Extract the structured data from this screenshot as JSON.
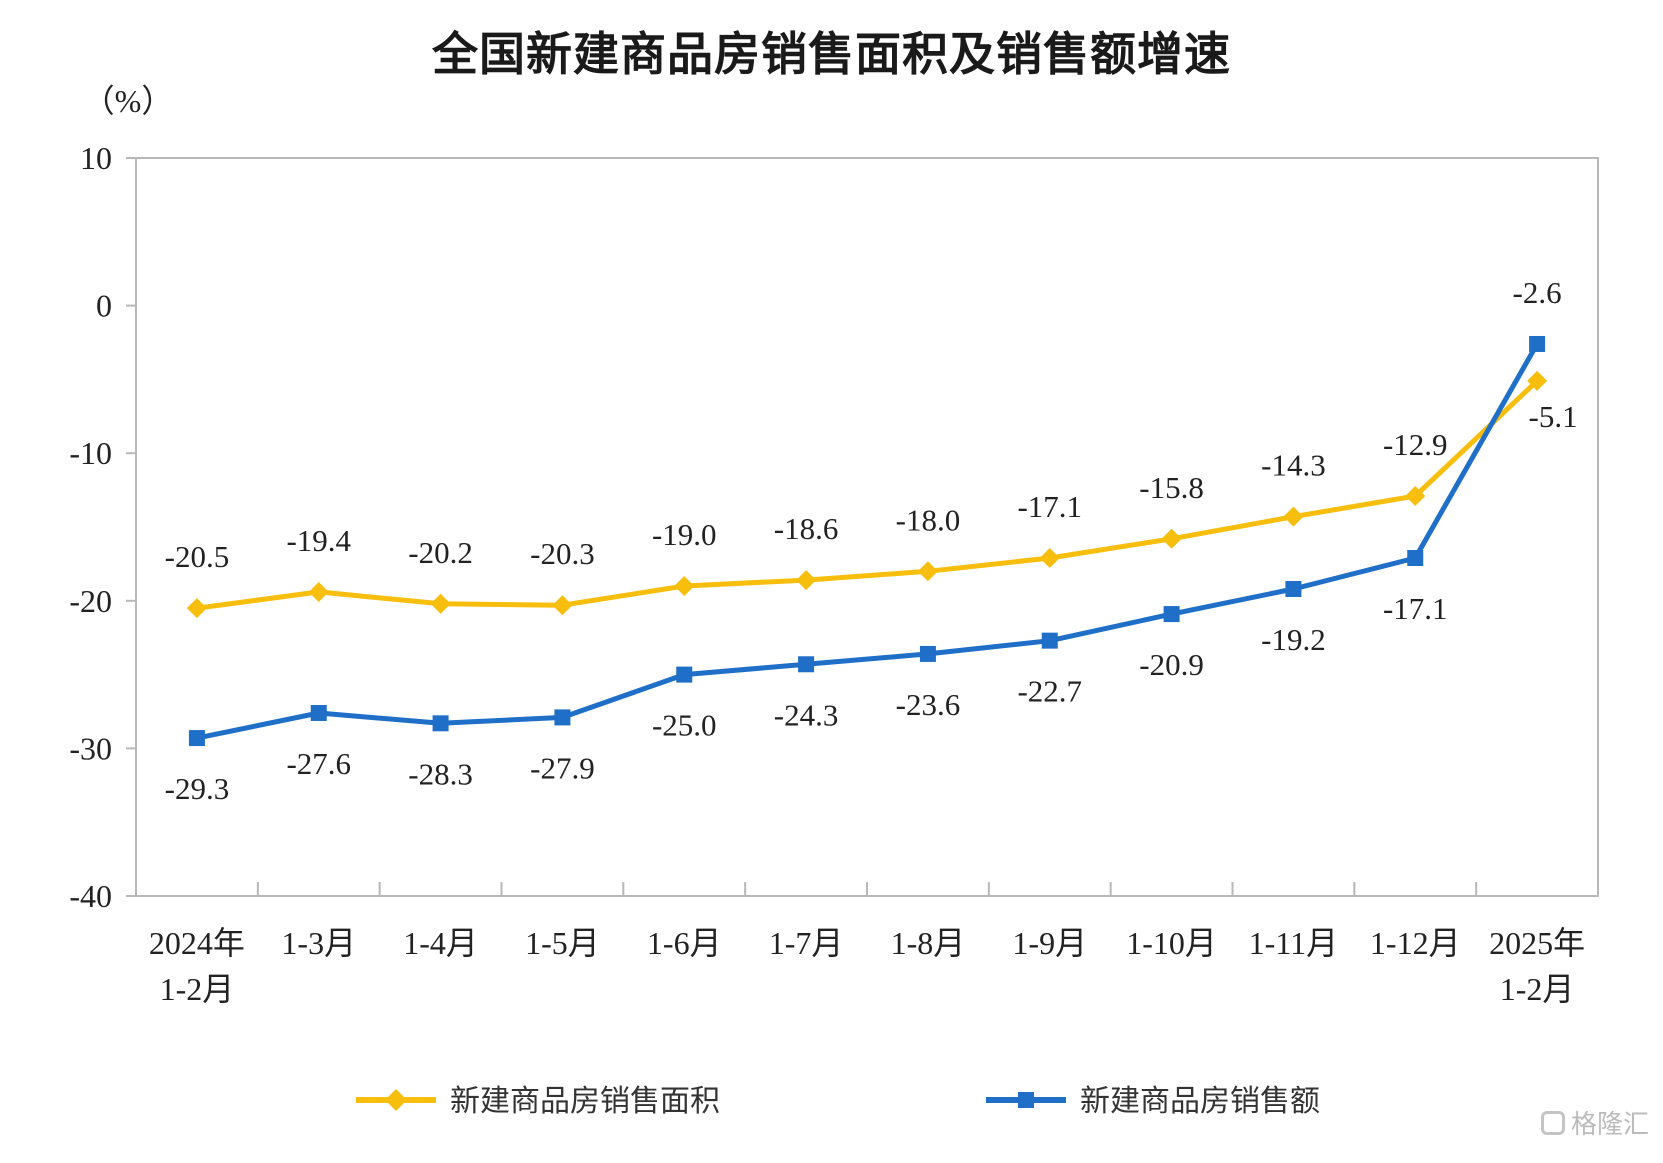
{
  "watermark": "格隆汇",
  "chart_data": {
    "type": "line",
    "title": "全国新建商品房销售面积及销售额增速",
    "ylabel": "（%）",
    "xlabel": "",
    "ylim": [
      -40,
      10
    ],
    "yticks": [
      10,
      0,
      -10,
      -20,
      -30,
      -40
    ],
    "categories": [
      [
        "2024年",
        "1-2月"
      ],
      [
        "1-3月"
      ],
      [
        "1-4月"
      ],
      [
        "1-5月"
      ],
      [
        "1-6月"
      ],
      [
        "1-7月"
      ],
      [
        "1-8月"
      ],
      [
        "1-9月"
      ],
      [
        "1-10月"
      ],
      [
        "1-11月"
      ],
      [
        "1-12月"
      ],
      [
        "2025年",
        "1-2月"
      ]
    ],
    "legend_position": "bottom",
    "series": [
      {
        "name": "新建商品房销售面积",
        "color": "#F7BE0E",
        "marker": "diamond",
        "values": [
          -20.5,
          -19.4,
          -20.2,
          -20.3,
          -19.0,
          -18.6,
          -18.0,
          -17.1,
          -15.8,
          -14.3,
          -12.9,
          -5.1
        ]
      },
      {
        "name": "新建商品房销售额",
        "color": "#1F6FC8",
        "marker": "square",
        "values": [
          -29.3,
          -27.6,
          -28.3,
          -27.9,
          -25.0,
          -24.3,
          -23.6,
          -22.7,
          -20.9,
          -19.2,
          -17.1,
          -2.6
        ]
      }
    ]
  }
}
